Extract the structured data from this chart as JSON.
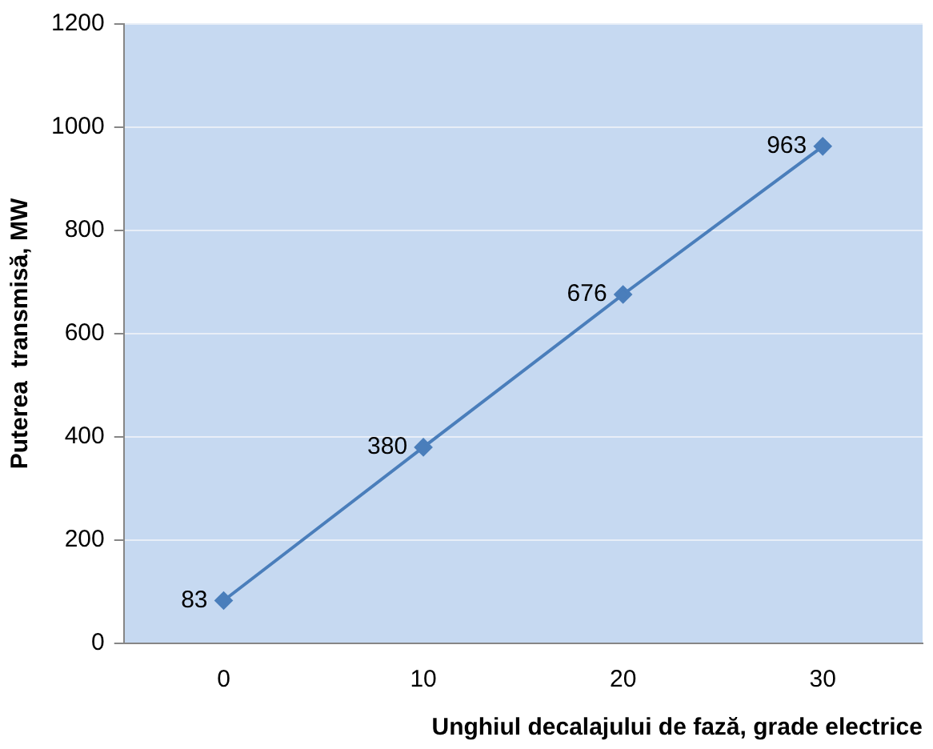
{
  "chart_data": {
    "type": "line",
    "xlabel": "Unghiul decalajului de fază, grade electrice",
    "ylabel": "Puterea  transmisă, MW",
    "categories": [
      "0",
      "10",
      "20",
      "30"
    ],
    "series": [
      {
        "color": "#4a7ebb",
        "values": [
          83,
          380,
          676,
          963
        ]
      }
    ],
    "ylim": [
      0,
      1200
    ],
    "yticks": [
      0,
      200,
      400,
      600,
      800,
      1000,
      1200
    ],
    "grid": "y",
    "legend": false,
    "marker": "diamond",
    "line_style": "solid",
    "data_labels": true
  }
}
